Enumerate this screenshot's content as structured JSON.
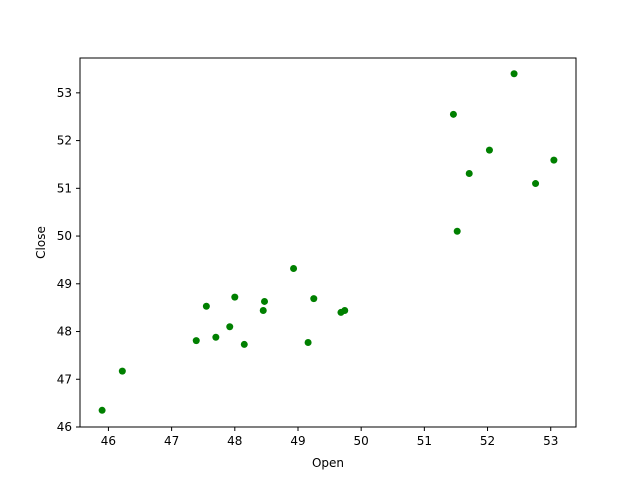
{
  "chart_data": {
    "type": "scatter",
    "title": "",
    "xlabel": "Open",
    "ylabel": "Close",
    "xlim": [
      45.55,
      53.4
    ],
    "ylim": [
      46.0,
      53.73
    ],
    "xticks": [
      46,
      47,
      48,
      49,
      50,
      51,
      52,
      53
    ],
    "yticks": [
      46,
      47,
      48,
      49,
      50,
      51,
      52,
      53
    ],
    "xtick_labels": [
      "46",
      "47",
      "48",
      "49",
      "50",
      "51",
      "52",
      "53"
    ],
    "ytick_labels": [
      "46",
      "47",
      "48",
      "49",
      "50",
      "51",
      "52",
      "53"
    ],
    "grid": false,
    "legend": "none",
    "marker_color": "#008000",
    "points": [
      {
        "x": 45.9,
        "y": 46.35
      },
      {
        "x": 46.22,
        "y": 47.17
      },
      {
        "x": 47.39,
        "y": 47.81
      },
      {
        "x": 47.55,
        "y": 48.53
      },
      {
        "x": 47.7,
        "y": 47.88
      },
      {
        "x": 47.92,
        "y": 48.1
      },
      {
        "x": 48.0,
        "y": 48.72
      },
      {
        "x": 48.15,
        "y": 47.73
      },
      {
        "x": 48.45,
        "y": 48.44
      },
      {
        "x": 48.47,
        "y": 48.63
      },
      {
        "x": 48.93,
        "y": 49.32
      },
      {
        "x": 49.16,
        "y": 47.77
      },
      {
        "x": 49.25,
        "y": 48.69
      },
      {
        "x": 49.68,
        "y": 48.4
      },
      {
        "x": 49.74,
        "y": 48.44
      },
      {
        "x": 51.46,
        "y": 52.55
      },
      {
        "x": 51.52,
        "y": 50.1
      },
      {
        "x": 51.71,
        "y": 51.31
      },
      {
        "x": 52.03,
        "y": 51.8
      },
      {
        "x": 52.42,
        "y": 53.4
      },
      {
        "x": 52.76,
        "y": 51.1
      },
      {
        "x": 53.05,
        "y": 51.59
      }
    ]
  }
}
